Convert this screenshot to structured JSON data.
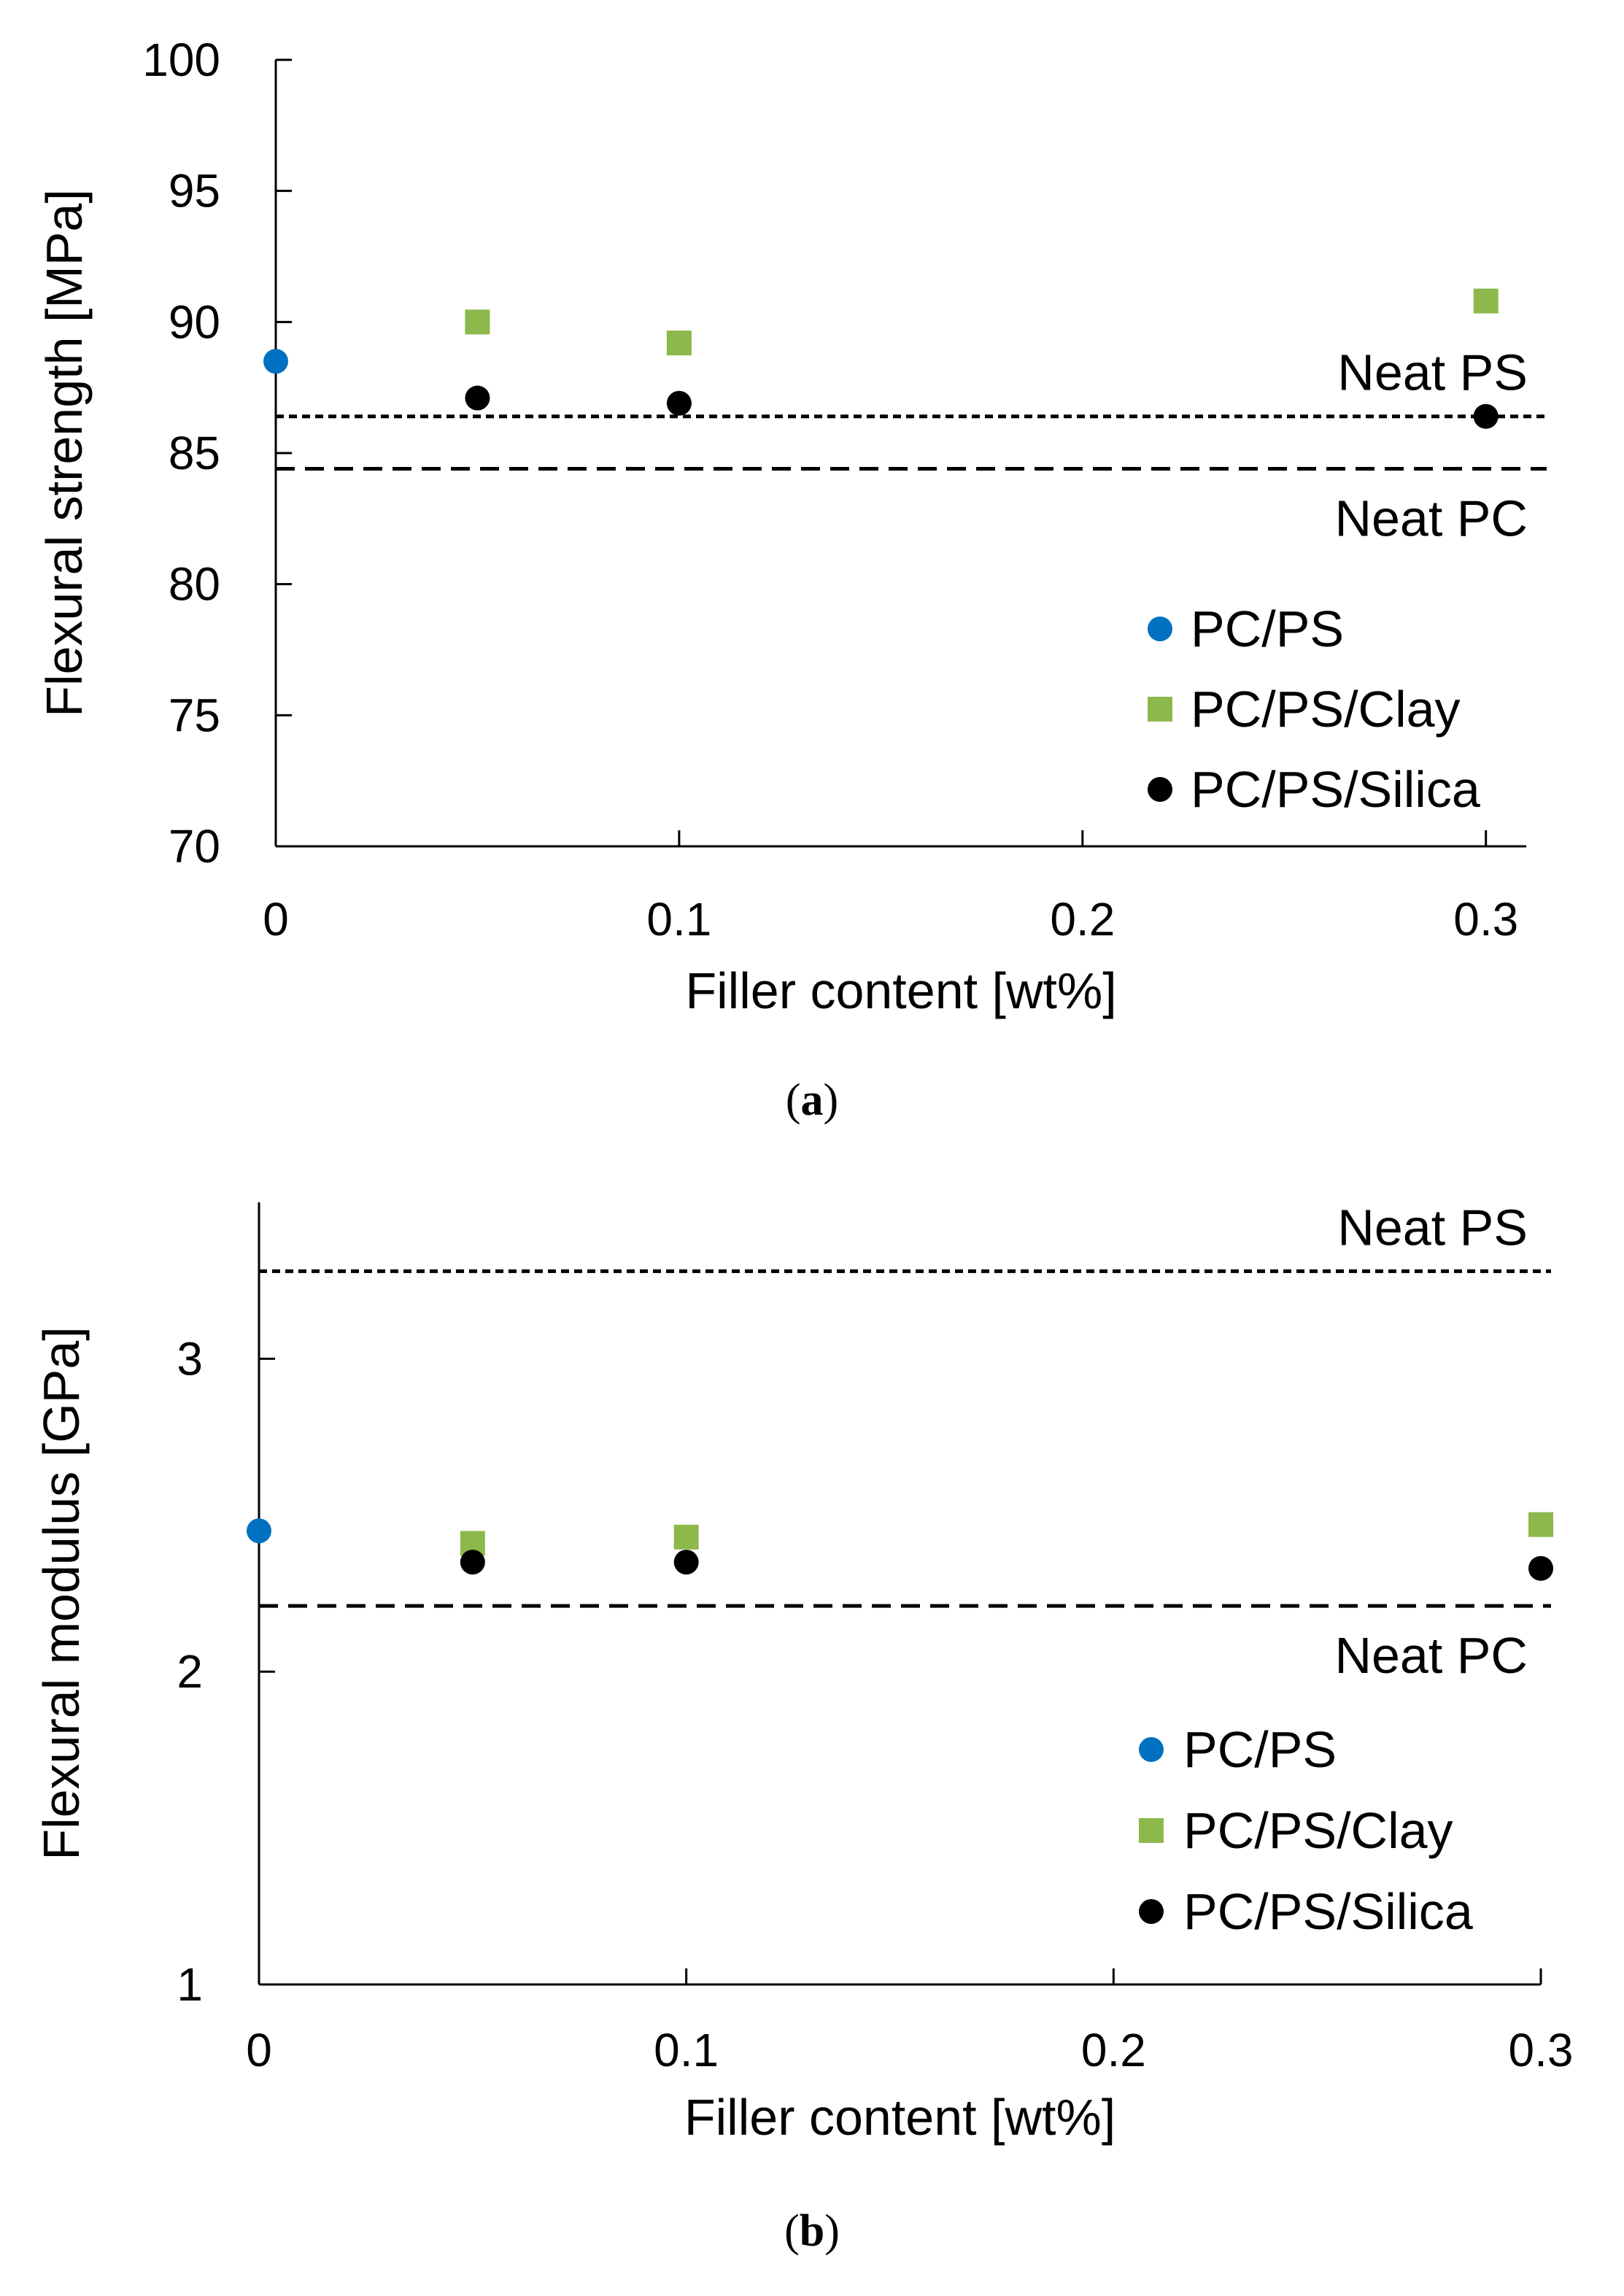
{
  "colors": {
    "pc_ps": "#0070C0",
    "pc_ps_clay": "#8DB94C",
    "pc_ps_silica": "#000000",
    "axis": "#000000"
  },
  "chart_data": [
    {
      "type": "scatter",
      "panel_label": "a",
      "xlabel": "Filler content [wt%]",
      "ylabel": "Flexural strength [MPa]",
      "xlim": [
        0,
        0.31
      ],
      "ylim": [
        70,
        100
      ],
      "x_ticks": [
        0,
        0.1,
        0.2,
        0.3
      ],
      "x_tick_labels": [
        "0",
        "0.1",
        "0.2",
        "0.3"
      ],
      "y_ticks": [
        70,
        75,
        80,
        85,
        90,
        95,
        100
      ],
      "y_tick_labels": [
        "70",
        "75",
        "80",
        "85",
        "90",
        "95",
        "100"
      ],
      "series": [
        {
          "name": "PC/PS",
          "marker": "circle",
          "color": "#0070C0",
          "x": [
            0
          ],
          "y": [
            88.5
          ]
        },
        {
          "name": "PC/PS/Clay",
          "marker": "square",
          "color": "#8DB94C",
          "x": [
            0.05,
            0.1,
            0.3
          ],
          "y": [
            90.0,
            89.2,
            90.8
          ]
        },
        {
          "name": "PC/PS/Silica",
          "marker": "circle",
          "color": "#000000",
          "x": [
            0.05,
            0.1,
            0.3
          ],
          "y": [
            87.1,
            86.9,
            86.4
          ]
        }
      ],
      "reference_lines": [
        {
          "label": "Neat PS",
          "y": 86.4,
          "style": "dotted",
          "label_position": "above"
        },
        {
          "label": "Neat PC",
          "y": 84.4,
          "style": "dashed",
          "label_position": "below"
        }
      ],
      "legend": "center-right"
    },
    {
      "type": "scatter",
      "panel_label": "b",
      "xlabel": "Filler content [wt%]",
      "ylabel": "Flexural modulus [GPa]",
      "xlim": [
        0,
        0.3
      ],
      "ylim": [
        1,
        3.5
      ],
      "x_ticks": [
        0,
        0.1,
        0.2,
        0.3
      ],
      "x_tick_labels": [
        "0",
        "0.1",
        "0.2",
        "0.3"
      ],
      "y_ticks": [
        1,
        2,
        3
      ],
      "y_tick_labels": [
        "1",
        "2",
        "3"
      ],
      "series": [
        {
          "name": "PC/PS",
          "marker": "circle",
          "color": "#0070C0",
          "x": [
            0
          ],
          "y": [
            2.45
          ]
        },
        {
          "name": "PC/PS/Clay",
          "marker": "square",
          "color": "#8DB94C",
          "x": [
            0.05,
            0.1,
            0.3
          ],
          "y": [
            2.41,
            2.43,
            2.47
          ]
        },
        {
          "name": "PC/PS/Silica",
          "marker": "circle",
          "color": "#000000",
          "x": [
            0.05,
            0.1,
            0.3
          ],
          "y": [
            2.35,
            2.35,
            2.33
          ]
        }
      ],
      "reference_lines": [
        {
          "label": "Neat PS",
          "y": 3.28,
          "style": "dotted",
          "label_position": "above"
        },
        {
          "label": "Neat PC",
          "y": 2.21,
          "style": "dashed",
          "label_position": "below"
        }
      ],
      "legend": "center-right"
    }
  ]
}
